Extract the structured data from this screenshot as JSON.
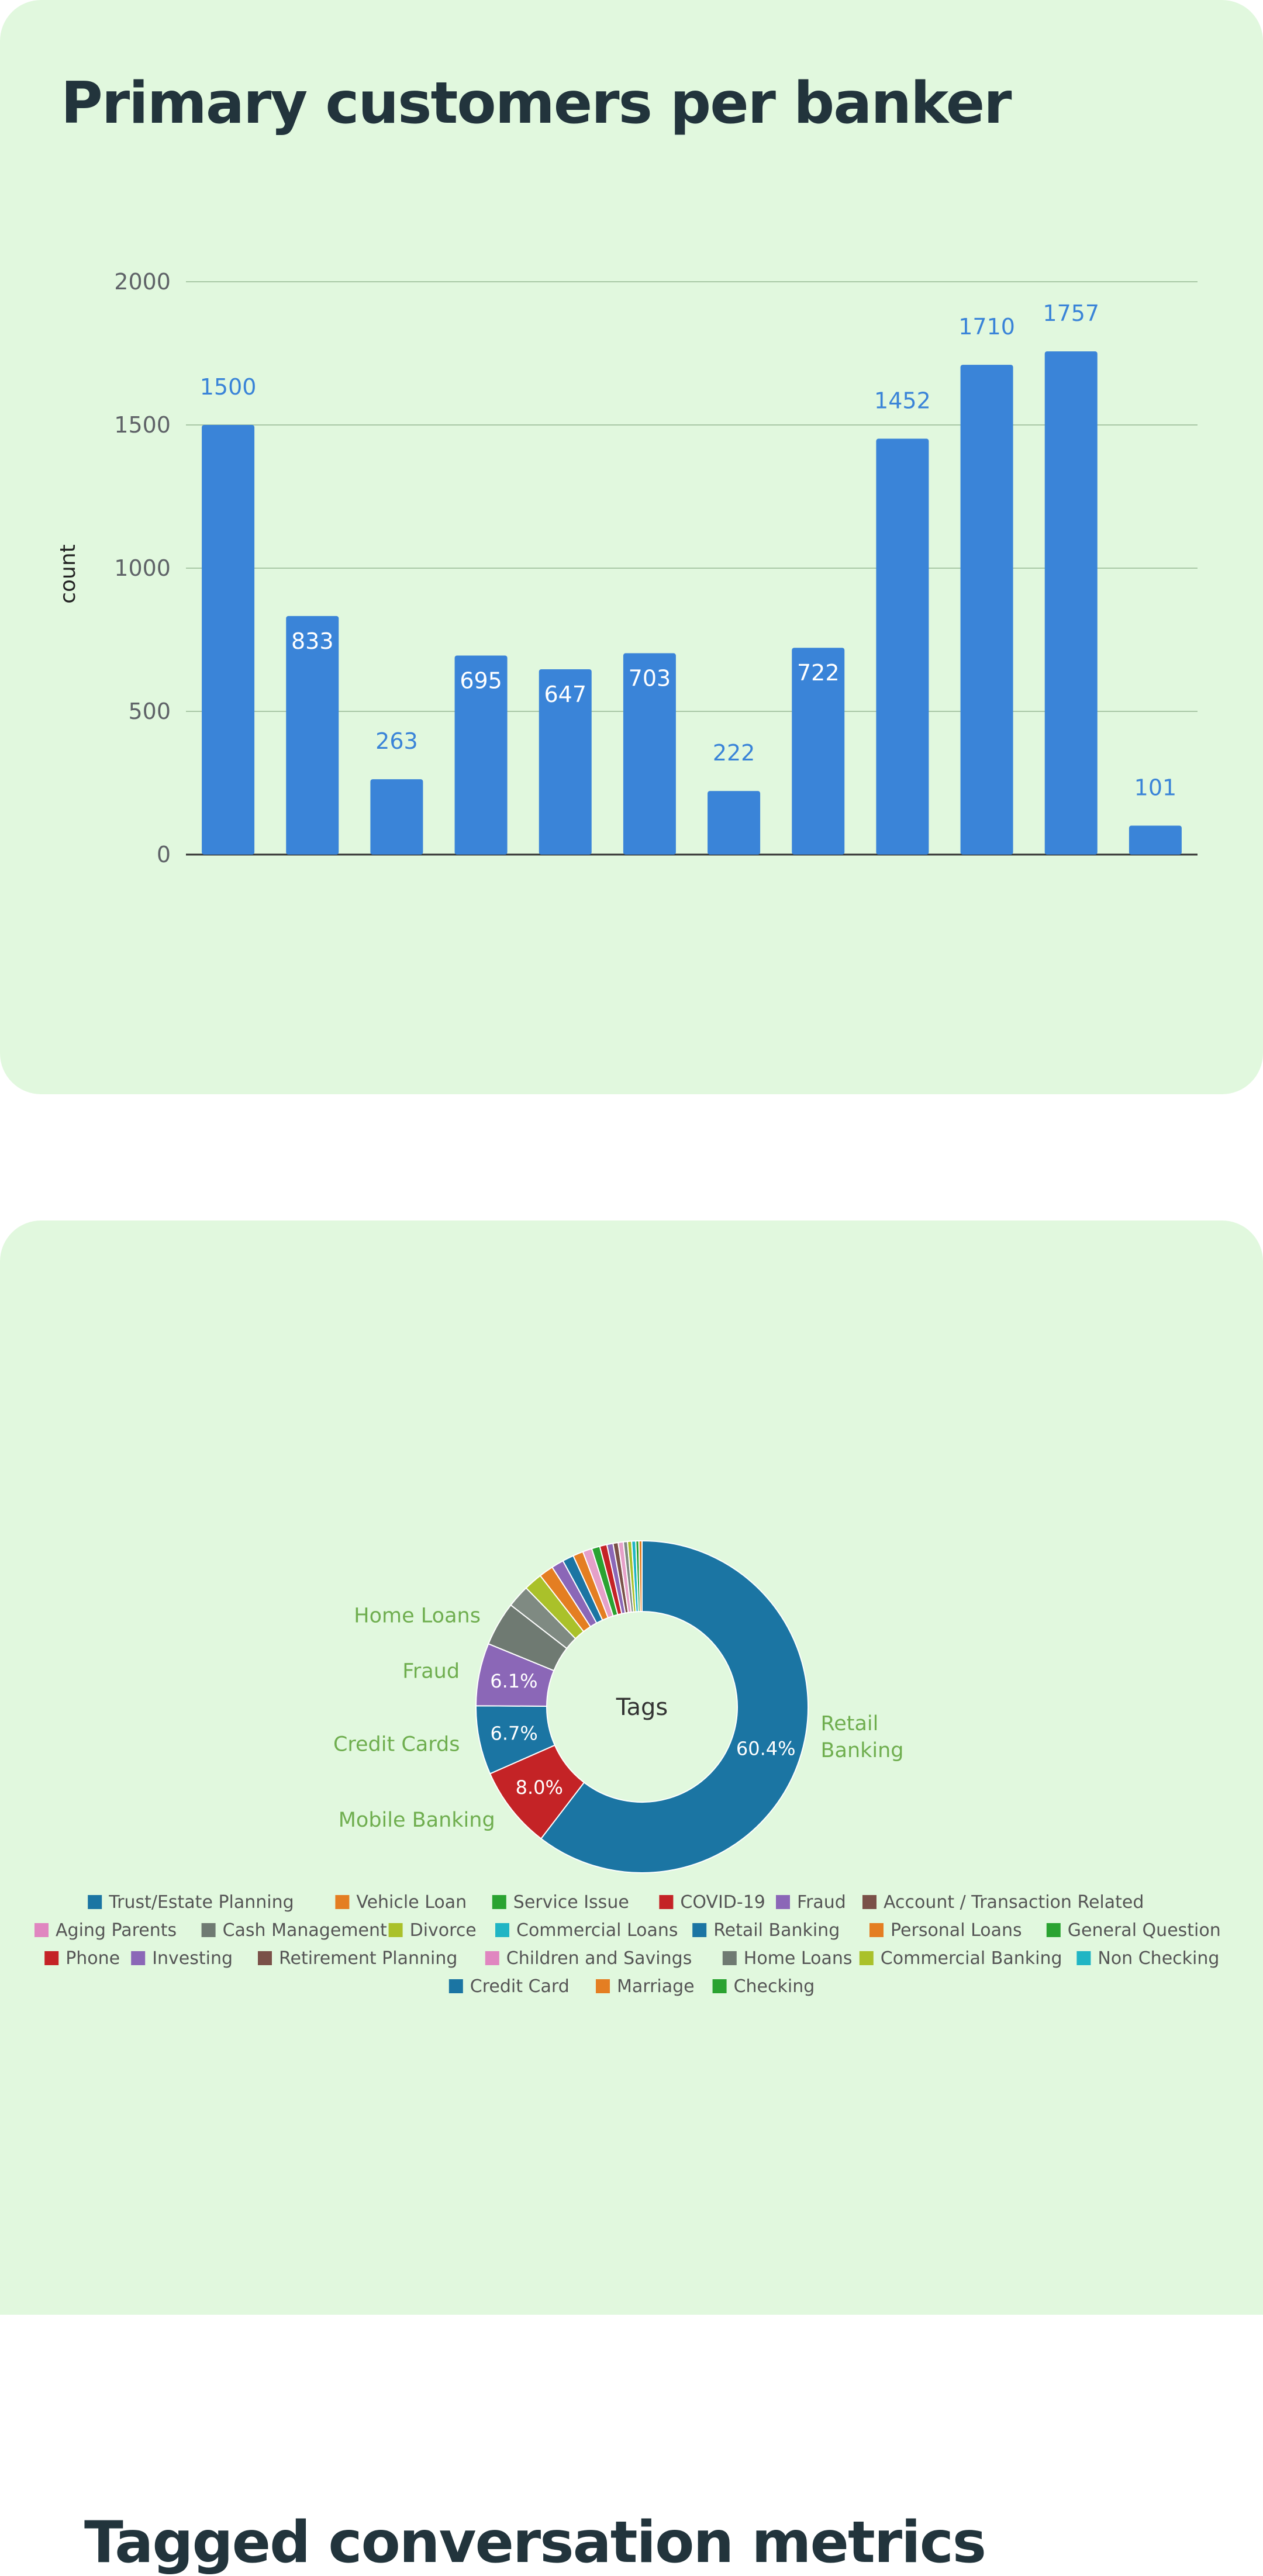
{
  "colors": {
    "card_bg": "#e1f8de",
    "title": "#22343c",
    "bar": "#3a84d8",
    "callout": "#6fae4f"
  },
  "bar_card": {
    "title": "Primary customers per banker"
  },
  "donut_card": {
    "title": "Tagged conversation metrics"
  },
  "chart_data": [
    {
      "type": "bar",
      "categories": [
        "",
        "",
        "",
        "",
        "",
        "",
        "",
        "",
        "",
        "",
        "",
        ""
      ],
      "values": [
        1500,
        833,
        263,
        695,
        647,
        703,
        222,
        722,
        1452,
        1710,
        1757,
        101
      ],
      "value_labels": [
        "1500",
        "833",
        "263",
        "695",
        "647",
        "703",
        "222",
        "722",
        "1452",
        "1710",
        "1757",
        "101"
      ],
      "xlabel": "",
      "ylabel": "count",
      "ylim": [
        0,
        2000
      ],
      "yticks": [
        0,
        500,
        1000,
        1500,
        2000
      ],
      "ytick_labels": [
        "0",
        "500",
        "1000",
        "1500",
        "2000"
      ],
      "grid": true,
      "color": "#3a84d8"
    },
    {
      "type": "pie",
      "center_label": "Tags",
      "slices": [
        {
          "label": "Retail Banking",
          "value": 60.4,
          "pct_label": "60.4%",
          "color": "#1b75a3"
        },
        {
          "label": "Mobile Banking",
          "value": 8.0,
          "pct_label": "8.0%",
          "color": "#c42326"
        },
        {
          "label": "Credit Cards",
          "value": 6.7,
          "pct_label": "6.7%",
          "color": "#1b75a3"
        },
        {
          "label": "Fraud",
          "value": 6.1,
          "pct_label": "6.1%",
          "color": "#8b67b7"
        },
        {
          "label": "Home Loans",
          "value": 4.3,
          "pct_label": "",
          "color": "#6f7a72"
        },
        {
          "label": "",
          "value": 2.2,
          "pct_label": "",
          "color": "#7f8a82"
        },
        {
          "label": "",
          "value": 1.8,
          "pct_label": "",
          "color": "#aac12a"
        },
        {
          "label": "",
          "value": 1.4,
          "pct_label": "",
          "color": "#e47e22"
        },
        {
          "label": "",
          "value": 1.2,
          "pct_label": "",
          "color": "#8b67b7"
        },
        {
          "label": "",
          "value": 1.1,
          "pct_label": "",
          "color": "#1b75a3"
        },
        {
          "label": "",
          "value": 1.0,
          "pct_label": "",
          "color": "#e47e22"
        },
        {
          "label": "",
          "value": 0.9,
          "pct_label": "",
          "color": "#e5a0c8"
        },
        {
          "label": "",
          "value": 0.8,
          "pct_label": "",
          "color": "#2aa331"
        },
        {
          "label": "",
          "value": 0.7,
          "pct_label": "",
          "color": "#c42326"
        },
        {
          "label": "",
          "value": 0.6,
          "pct_label": "",
          "color": "#8b67b7"
        },
        {
          "label": "",
          "value": 0.5,
          "pct_label": "",
          "color": "#7a5148"
        },
        {
          "label": "",
          "value": 0.5,
          "pct_label": "",
          "color": "#e5a0c8"
        },
        {
          "label": "",
          "value": 0.4,
          "pct_label": "",
          "color": "#7f8a82"
        },
        {
          "label": "",
          "value": 0.4,
          "pct_label": "",
          "color": "#aac12a"
        },
        {
          "label": "",
          "value": 0.4,
          "pct_label": "",
          "color": "#20b5c4"
        },
        {
          "label": "",
          "value": 0.3,
          "pct_label": "",
          "color": "#2aa331"
        },
        {
          "label": "",
          "value": 0.3,
          "pct_label": "",
          "color": "#e47e22"
        }
      ],
      "legend": [
        {
          "label": "Trust/Estate Planning",
          "color": "#1b75a3"
        },
        {
          "label": "Vehicle Loan",
          "color": "#e47e22"
        },
        {
          "label": "Service Issue",
          "color": "#2aa331"
        },
        {
          "label": "COVID-19",
          "color": "#c42326"
        },
        {
          "label": "Fraud",
          "color": "#8b67b7"
        },
        {
          "label": "Account / Transaction Related",
          "color": "#7a5148"
        },
        {
          "label": "Aging Parents",
          "color": "#e086c0"
        },
        {
          "label": "Cash Management",
          "color": "#6f7a72"
        },
        {
          "label": "Divorce",
          "color": "#aac12a"
        },
        {
          "label": "Commercial Loans",
          "color": "#20b5c4"
        },
        {
          "label": "Retail Banking",
          "color": "#1b75a3"
        },
        {
          "label": "Personal Loans",
          "color": "#e47e22"
        },
        {
          "label": "General Question",
          "color": "#2aa331"
        },
        {
          "label": "Phone",
          "color": "#c42326"
        },
        {
          "label": "Investing",
          "color": "#8b67b7"
        },
        {
          "label": "Retirement Planning",
          "color": "#7a5148"
        },
        {
          "label": "Children and Savings",
          "color": "#e086c0"
        },
        {
          "label": "Home Loans",
          "color": "#6f7a72"
        },
        {
          "label": "Commercial Banking",
          "color": "#aac12a"
        },
        {
          "label": "Non Checking",
          "color": "#20b5c4"
        },
        {
          "label": "Credit Card",
          "color": "#1b75a3"
        },
        {
          "label": "Marriage",
          "color": "#e47e22"
        },
        {
          "label": "Checking",
          "color": "#2aa331"
        }
      ],
      "legend_position": "bottom"
    }
  ]
}
